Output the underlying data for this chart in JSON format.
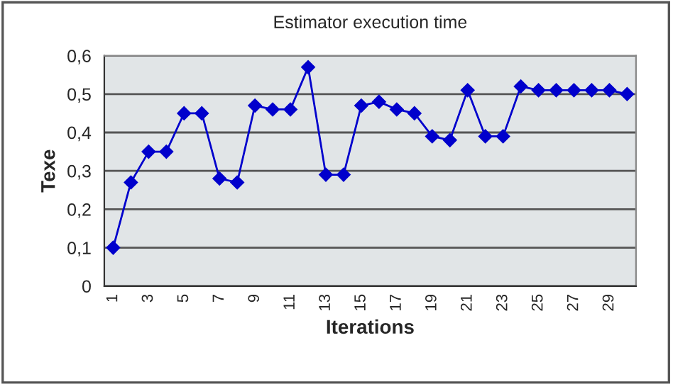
{
  "chart_data": {
    "type": "line",
    "title": "Estimator execution time",
    "xlabel": "Iterations",
    "ylabel": "Texe",
    "categories": [
      "1",
      null,
      "3",
      null,
      "5",
      null,
      "7",
      null,
      "9",
      null,
      "11",
      null,
      "13",
      null,
      "15",
      null,
      "17",
      null,
      "19",
      null,
      "21",
      null,
      "23",
      null,
      "25",
      null,
      "27",
      null,
      "29",
      null
    ],
    "series": [
      {
        "color": "#0000cc",
        "values": [
          0.1,
          0.27,
          0.35,
          0.35,
          0.45,
          0.45,
          0.28,
          0.27,
          0.47,
          0.46,
          0.46,
          0.57,
          0.29,
          0.29,
          0.47,
          0.48,
          0.46,
          0.45,
          0.39,
          0.38,
          0.51,
          0.39,
          0.39,
          0.52,
          0.51,
          0.51,
          0.51,
          0.51,
          0.51,
          0.5
        ]
      }
    ],
    "ylim": [
      0,
      0.6
    ],
    "yticks": [
      {
        "value": 0,
        "label": "0"
      },
      {
        "value": 0.1,
        "label": "0,1"
      },
      {
        "value": 0.2,
        "label": "0,2"
      },
      {
        "value": 0.3,
        "label": "0,3"
      },
      {
        "value": 0.4,
        "label": "0,4"
      },
      {
        "value": 0.5,
        "label": "0,5"
      },
      {
        "value": 0.6,
        "label": "0,6"
      }
    ],
    "grid": "y",
    "marker": "diamond",
    "line_style": "solid"
  }
}
